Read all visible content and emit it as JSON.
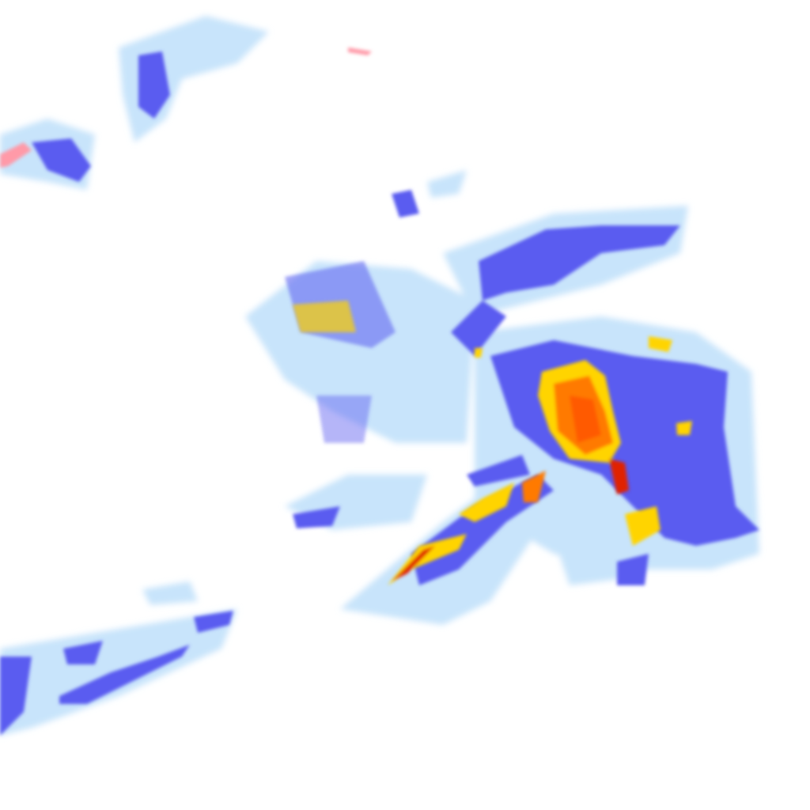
{
  "map": {
    "type": "precipitation-radar-tile",
    "colors": {
      "light": "#c8e4fb",
      "pale": "#a9d2f7",
      "medium": "#5a5cf0",
      "strong": "#3b3de0",
      "heavy_yellow": "#ffd400",
      "heavy_orange": "#ff7a00",
      "extreme_red": "#e02000",
      "dark_red": "#a01010",
      "trace_pink": "#ff9aa8"
    }
  }
}
